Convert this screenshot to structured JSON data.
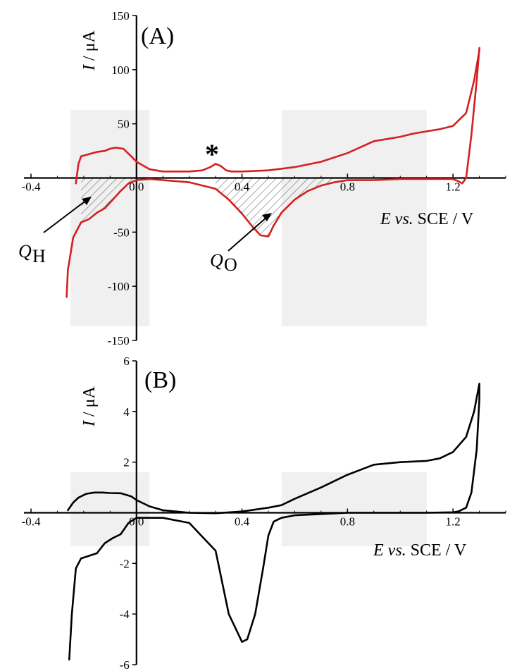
{
  "colors": {
    "panel_a_curve": "#d42020",
    "panel_b_curve": "#000000",
    "shaded_region": "#f0f0f0",
    "axis": "#000000"
  },
  "chart_data": [
    {
      "type": "line",
      "panel_label": "(A)",
      "xlabel_italic": "E vs.",
      "xlabel_rest": " SCE / V",
      "ylabel_italic": "I",
      "ylabel_rest": " / μA",
      "xlim": [
        -0.4,
        1.4
      ],
      "ylim": [
        -150,
        150
      ],
      "x_ticks": [
        -0.4,
        0.0,
        0.4,
        0.8,
        1.2
      ],
      "x_tick_labels": [
        "-0.4",
        "0.0",
        "0.4",
        "0.8",
        "1.2"
      ],
      "y_ticks": [
        -150,
        -100,
        -50,
        50,
        100,
        150
      ],
      "y_tick_labels": [
        "-150",
        "-100",
        "-50",
        "50",
        "100",
        "150"
      ],
      "shaded_x_ranges": [
        [
          -0.25,
          0.05
        ],
        [
          0.55,
          1.1
        ]
      ],
      "annotations": {
        "star": "*",
        "q_h": "Q",
        "q_h_sub": "H",
        "q_o": "Q",
        "q_o_sub": "O"
      },
      "series": [
        {
          "color": "#d42020",
          "x": [
            -0.23,
            -0.22,
            -0.21,
            -0.18,
            -0.15,
            -0.12,
            -0.1,
            -0.08,
            -0.05,
            -0.02,
            0.0,
            0.05,
            0.1,
            0.15,
            0.2,
            0.25,
            0.28,
            0.3,
            0.32,
            0.34,
            0.36,
            0.4,
            0.5,
            0.6,
            0.7,
            0.8,
            0.9,
            1.0,
            1.05,
            1.1,
            1.15,
            1.2,
            1.25,
            1.28,
            1.3,
            1.3,
            1.29,
            1.27,
            1.25,
            1.235,
            1.22,
            1.2,
            1.1,
            1.0,
            0.9,
            0.8,
            0.75,
            0.7,
            0.65,
            0.6,
            0.55,
            0.52,
            0.5,
            0.47,
            0.44,
            0.4,
            0.35,
            0.3,
            0.2,
            0.1,
            0.05,
            0.0,
            -0.03,
            -0.06,
            -0.09,
            -0.12,
            -0.15,
            -0.18,
            -0.21,
            -0.24,
            -0.26,
            -0.265
          ],
          "y": [
            -5,
            13,
            20,
            22,
            24,
            25,
            27,
            28,
            27,
            20,
            15,
            8,
            6,
            6,
            6,
            7,
            10,
            13,
            11,
            7,
            6,
            6,
            7,
            10,
            15,
            23,
            34,
            38,
            41,
            43,
            45,
            48,
            60,
            90,
            118,
            120,
            90,
            40,
            0,
            -5,
            -3,
            -1,
            -1,
            -1,
            -2,
            -2,
            -4,
            -7,
            -12,
            -20,
            -32,
            -44,
            -54,
            -53,
            -45,
            -33,
            -20,
            -10,
            -4,
            -2,
            -1,
            -2,
            -5,
            -12,
            -20,
            -28,
            -32,
            -38,
            -41,
            -55,
            -85,
            -110
          ]
        }
      ]
    },
    {
      "type": "line",
      "panel_label": "(B)",
      "xlabel_italic": "E vs.",
      "xlabel_rest": " SCE / V",
      "ylabel_italic": "I",
      "ylabel_rest": " / μA",
      "xlim": [
        -0.4,
        1.4
      ],
      "ylim": [
        -6,
        6
      ],
      "x_ticks": [
        -0.4,
        0.0,
        0.4,
        0.8,
        1.2
      ],
      "x_tick_labels": [
        "-0.4",
        "0.0",
        "0.4",
        "0.8",
        "1.2"
      ],
      "y_ticks": [
        -6,
        -4,
        -2,
        2,
        4,
        6
      ],
      "y_tick_labels": [
        "-6",
        "-4",
        "-2",
        "2",
        "4",
        "6"
      ],
      "shaded_x_ranges": [
        [
          -0.25,
          0.05
        ],
        [
          0.55,
          1.1
        ]
      ],
      "series": [
        {
          "color": "#000000",
          "x": [
            -0.26,
            -0.24,
            -0.22,
            -0.19,
            -0.16,
            -0.13,
            -0.1,
            -0.06,
            -0.02,
            0.0,
            0.05,
            0.1,
            0.2,
            0.3,
            0.4,
            0.5,
            0.55,
            0.6,
            0.7,
            0.8,
            0.9,
            1.0,
            1.1,
            1.15,
            1.2,
            1.25,
            1.28,
            1.3,
            1.3,
            1.29,
            1.27,
            1.25,
            1.22,
            1.2,
            1.1,
            1.0,
            0.9,
            0.8,
            0.7,
            0.6,
            0.55,
            0.52,
            0.5,
            0.48,
            0.45,
            0.42,
            0.4,
            0.35,
            0.3,
            0.2,
            0.1,
            0.05,
            0.0,
            -0.03,
            -0.06,
            -0.09,
            -0.12,
            -0.15,
            -0.18,
            -0.21,
            -0.23,
            -0.245,
            -0.255
          ],
          "y": [
            0.1,
            0.4,
            0.6,
            0.75,
            0.8,
            0.8,
            0.78,
            0.77,
            0.65,
            0.5,
            0.25,
            0.1,
            0.0,
            -0.02,
            0.05,
            0.2,
            0.3,
            0.55,
            1.0,
            1.5,
            1.9,
            2.0,
            2.05,
            2.15,
            2.4,
            3.0,
            4.0,
            5.1,
            4.5,
            2.5,
            0.8,
            0.2,
            0.05,
            0.02,
            0.0,
            0.0,
            0.0,
            0.0,
            -0.05,
            -0.1,
            -0.2,
            -0.35,
            -0.9,
            -2.2,
            -4.0,
            -5.0,
            -5.1,
            -4.0,
            -1.5,
            -0.4,
            -0.2,
            -0.2,
            -0.2,
            -0.4,
            -0.85,
            -1.0,
            -1.2,
            -1.6,
            -1.7,
            -1.8,
            -2.2,
            -4.0,
            -5.8
          ]
        }
      ]
    }
  ]
}
